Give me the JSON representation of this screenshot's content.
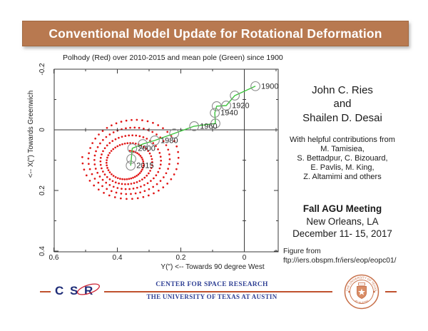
{
  "slide": {
    "title": "Conventional Model Update for Rotational Deformation"
  },
  "authors": {
    "lines": [
      "John C. Ries",
      "and",
      "Shailen D. Desai"
    ]
  },
  "contributions": {
    "lines": [
      "With helpful contributions from",
      "M. Tamisiea,",
      "S. Bettadpur, C. Bizouard,",
      "E. Pavlis, M. King,",
      "Z. Altamimi and others"
    ]
  },
  "meeting": {
    "title": "Fall AGU Meeting",
    "lines": [
      "New Orleans, LA",
      "December 11- 15, 2017"
    ]
  },
  "figure_source": {
    "lines": [
      "Figure from",
      "ftp://iers.obspm.fr/iers/eop/eopc01/"
    ]
  },
  "footer": {
    "csr": "C S R",
    "center": "CENTER FOR SPACE RESEARCH",
    "university": "THE UNIVERSITY OF TEXAS AT AUSTIN",
    "seal_top": "THE UNIVERSITY OF TEXAS",
    "seal_bottom": "AT AUSTIN"
  },
  "colors": {
    "banner_bg": "#b87950",
    "rule": "#c0512e",
    "csr_navy": "#1f2d78",
    "csr_swoosh": "#cc2030",
    "footer_blue": "#2e3f94",
    "seal_orange": "#c76f48",
    "seal_fill": "#d98d66",
    "axis": "#3a3a3a",
    "green_line": "#3cc43c",
    "marker_grey": "#8a8a8a",
    "red_dots": "#e11616",
    "label_text": "#2a2a2a"
  },
  "chart_data": {
    "type": "scatter",
    "title": "Polhody (Red) over 2010-2015 and mean pole (Green) since 1900",
    "xlabel": "Y(\") <-- Towards 90 degree West",
    "ylabel": "<-- X(\") Towards Greenwich",
    "xlim": [
      0.6,
      -0.11
    ],
    "ylim": [
      -0.2,
      0.4
    ],
    "grid": false,
    "legend": "none (series identified in title)",
    "x_ticks": [
      {
        "v": 0.6,
        "label": "0.6"
      },
      {
        "v": 0.4,
        "label": "0.4"
      },
      {
        "v": 0.2,
        "label": "0.2"
      },
      {
        "v": 0,
        "label": "0"
      }
    ],
    "y_ticks": [
      {
        "v": -0.2,
        "label": "-0.2"
      },
      {
        "v": 0,
        "label": "0"
      },
      {
        "v": 0.2,
        "label": "0.2"
      },
      {
        "v": 0.4,
        "label": "0.4"
      }
    ],
    "x_minor_ticks": [
      0.5,
      0.3,
      0.1,
      -0.1
    ],
    "y_minor_ticks": [
      -0.1,
      0.1,
      0.3
    ],
    "zero_axis_ticks_x": [
      0.5,
      0.4,
      0.3,
      0.2,
      0.1,
      -0.1
    ],
    "zero_axis_ticks_y": [
      -0.1,
      0.1,
      0.2,
      0.3
    ],
    "series": [
      {
        "name": "mean pole (Green) since 1900",
        "type": "line+markers",
        "points": [
          {
            "year": 1900,
            "x": -0.035,
            "y": -0.144,
            "label": "1900"
          },
          {
            "year": 1910,
            "x": 0.03,
            "y": -0.113
          },
          {
            "year": 1920,
            "x": 0.057,
            "y": -0.08,
            "label": "1920"
          },
          {
            "year": 1930,
            "x": 0.087,
            "y": -0.078
          },
          {
            "year": 1940,
            "x": 0.093,
            "y": -0.056,
            "label": "1940"
          },
          {
            "year": 1950,
            "x": 0.091,
            "y": -0.021
          },
          {
            "year": 1960,
            "x": 0.158,
            "y": -0.012,
            "label": "1960"
          },
          {
            "year": 1970,
            "x": 0.221,
            "y": 0.012
          },
          {
            "year": 1980,
            "x": 0.282,
            "y": 0.035,
            "label": "1980"
          },
          {
            "year": 1990,
            "x": 0.32,
            "y": 0.047
          },
          {
            "year": 2000,
            "x": 0.353,
            "y": 0.061,
            "label": "2000"
          },
          {
            "year": 2010,
            "x": 0.356,
            "y": 0.096
          },
          {
            "year": 2015,
            "x": 0.358,
            "y": 0.118,
            "label": "2015"
          }
        ]
      },
      {
        "name": "Polhody (Red) over 2010-2015",
        "type": "dotted-spiral",
        "spiral": {
          "center_start": [
            0.352,
            0.09
          ],
          "center_end": [
            0.372,
            0.112
          ],
          "r_start": 0.15,
          "r_end": 0.046,
          "turns": 4.7,
          "step_deg": 7.5,
          "wobble": 0.06
        }
      }
    ]
  }
}
